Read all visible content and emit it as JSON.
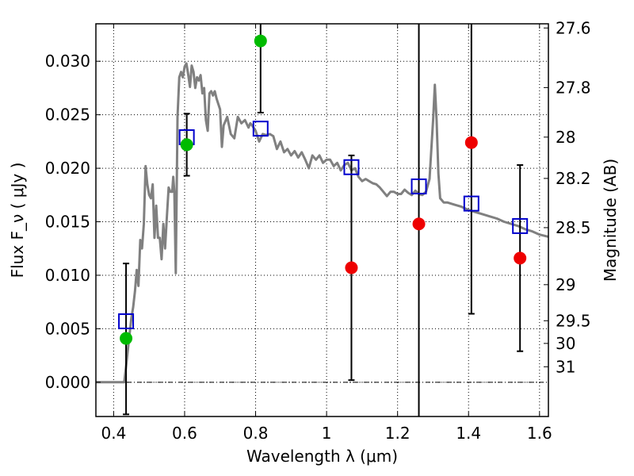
{
  "chart_data": {
    "type": "scatter",
    "xlabel": "Wavelength  λ (μm)",
    "ylabel": "Flux  F_ν  ( μJy )",
    "y2label": "Magnitude (AB)",
    "xlim": [
      0.35,
      1.625
    ],
    "ylim": [
      -0.0032,
      0.0335
    ],
    "grid": true,
    "x_ticks": [
      0.4,
      0.6,
      0.8,
      1.0,
      1.2,
      1.4,
      1.6
    ],
    "x_tick_labels": [
      "0.4",
      "0.6",
      "0.8",
      "1",
      "1.2",
      "1.4",
      "1.6"
    ],
    "y_ticks": [
      0.0,
      0.005,
      0.01,
      0.015,
      0.02,
      0.025,
      0.03
    ],
    "y_tick_labels": [
      "0.000",
      "0.005",
      "0.010",
      "0.015",
      "0.020",
      "0.025",
      "0.030"
    ],
    "y2_ticks": [
      {
        "label": "27.6",
        "flux": 0.03311
      },
      {
        "label": "27.8",
        "flux": 0.02754
      },
      {
        "label": "28",
        "flux": 0.02291
      },
      {
        "label": "28.2",
        "flux": 0.01905
      },
      {
        "label": "28.5",
        "flux": 0.01445
      },
      {
        "label": "29",
        "flux": 0.00912
      },
      {
        "label": "29.5",
        "flux": 0.00575
      },
      {
        "label": "30",
        "flux": 0.00363
      },
      {
        "label": "31",
        "flux": 0.00145
      }
    ],
    "model_spectrum": [
      [
        0.35,
        0.0
      ],
      [
        0.43,
        0.0
      ],
      [
        0.435,
        0.0015
      ],
      [
        0.44,
        0.003
      ],
      [
        0.445,
        0.0045
      ],
      [
        0.45,
        0.006
      ],
      [
        0.455,
        0.007
      ],
      [
        0.46,
        0.0085
      ],
      [
        0.465,
        0.0105
      ],
      [
        0.47,
        0.009
      ],
      [
        0.475,
        0.0133
      ],
      [
        0.48,
        0.0125
      ],
      [
        0.485,
        0.0148
      ],
      [
        0.49,
        0.0202
      ],
      [
        0.495,
        0.0185
      ],
      [
        0.5,
        0.0175
      ],
      [
        0.505,
        0.0172
      ],
      [
        0.51,
        0.0185
      ],
      [
        0.515,
        0.0135
      ],
      [
        0.52,
        0.0165
      ],
      [
        0.525,
        0.0135
      ],
      [
        0.53,
        0.0135
      ],
      [
        0.535,
        0.0115
      ],
      [
        0.54,
        0.0148
      ],
      [
        0.545,
        0.0125
      ],
      [
        0.55,
        0.0155
      ],
      [
        0.555,
        0.0182
      ],
      [
        0.56,
        0.0178
      ],
      [
        0.565,
        0.0178
      ],
      [
        0.568,
        0.0192
      ],
      [
        0.571,
        0.0178
      ],
      [
        0.575,
        0.0102
      ],
      [
        0.58,
        0.0248
      ],
      [
        0.585,
        0.0285
      ],
      [
        0.59,
        0.029
      ],
      [
        0.595,
        0.0285
      ],
      [
        0.6,
        0.0295
      ],
      [
        0.605,
        0.0298
      ],
      [
        0.61,
        0.0288
      ],
      [
        0.615,
        0.0276
      ],
      [
        0.62,
        0.0296
      ],
      [
        0.625,
        0.029
      ],
      [
        0.63,
        0.0275
      ],
      [
        0.635,
        0.0285
      ],
      [
        0.64,
        0.0282
      ],
      [
        0.645,
        0.0287
      ],
      [
        0.65,
        0.027
      ],
      [
        0.655,
        0.0275
      ],
      [
        0.66,
        0.0245
      ],
      [
        0.665,
        0.0235
      ],
      [
        0.67,
        0.027
      ],
      [
        0.675,
        0.0272
      ],
      [
        0.68,
        0.0268
      ],
      [
        0.685,
        0.0272
      ],
      [
        0.69,
        0.0265
      ],
      [
        0.7,
        0.0255
      ],
      [
        0.705,
        0.022
      ],
      [
        0.71,
        0.024
      ],
      [
        0.72,
        0.0248
      ],
      [
        0.73,
        0.0232
      ],
      [
        0.74,
        0.0228
      ],
      [
        0.75,
        0.0248
      ],
      [
        0.76,
        0.0242
      ],
      [
        0.77,
        0.0245
      ],
      [
        0.78,
        0.0238
      ],
      [
        0.785,
        0.0242
      ],
      [
        0.79,
        0.024
      ],
      [
        0.8,
        0.0235
      ],
      [
        0.81,
        0.0225
      ],
      [
        0.82,
        0.0232
      ],
      [
        0.83,
        0.0231
      ],
      [
        0.84,
        0.0232
      ],
      [
        0.85,
        0.023
      ],
      [
        0.86,
        0.0218
      ],
      [
        0.87,
        0.0225
      ],
      [
        0.88,
        0.0215
      ],
      [
        0.89,
        0.0218
      ],
      [
        0.9,
        0.0212
      ],
      [
        0.91,
        0.0216
      ],
      [
        0.92,
        0.021
      ],
      [
        0.93,
        0.0215
      ],
      [
        0.94,
        0.0208
      ],
      [
        0.95,
        0.02
      ],
      [
        0.96,
        0.0212
      ],
      [
        0.97,
        0.0208
      ],
      [
        0.98,
        0.0212
      ],
      [
        0.99,
        0.0205
      ],
      [
        1.0,
        0.0208
      ],
      [
        1.01,
        0.0208
      ],
      [
        1.02,
        0.0202
      ],
      [
        1.03,
        0.0205
      ],
      [
        1.04,
        0.0198
      ],
      [
        1.05,
        0.0203
      ],
      [
        1.06,
        0.0205
      ],
      [
        1.07,
        0.0198
      ],
      [
        1.08,
        0.02
      ],
      [
        1.09,
        0.0192
      ],
      [
        1.1,
        0.0188
      ],
      [
        1.11,
        0.019
      ],
      [
        1.12,
        0.0188
      ],
      [
        1.13,
        0.0186
      ],
      [
        1.14,
        0.0185
      ],
      [
        1.15,
        0.0182
      ],
      [
        1.16,
        0.0178
      ],
      [
        1.17,
        0.0174
      ],
      [
        1.18,
        0.0178
      ],
      [
        1.19,
        0.0178
      ],
      [
        1.2,
        0.0176
      ],
      [
        1.21,
        0.0176
      ],
      [
        1.22,
        0.018
      ],
      [
        1.23,
        0.0177
      ],
      [
        1.24,
        0.0175
      ],
      [
        1.25,
        0.0179
      ],
      [
        1.26,
        0.0176
      ],
      [
        1.27,
        0.0175
      ],
      [
        1.28,
        0.0178
      ],
      [
        1.29,
        0.019
      ],
      [
        1.3,
        0.0245
      ],
      [
        1.305,
        0.0278
      ],
      [
        1.31,
        0.0245
      ],
      [
        1.315,
        0.0195
      ],
      [
        1.32,
        0.0172
      ],
      [
        1.33,
        0.0168
      ],
      [
        1.34,
        0.0168
      ],
      [
        1.36,
        0.0166
      ],
      [
        1.38,
        0.0164
      ],
      [
        1.4,
        0.0161
      ],
      [
        1.42,
        0.0159
      ],
      [
        1.44,
        0.0157
      ],
      [
        1.46,
        0.0155
      ],
      [
        1.48,
        0.0153
      ],
      [
        1.5,
        0.015
      ],
      [
        1.52,
        0.0148
      ],
      [
        1.54,
        0.0146
      ],
      [
        1.56,
        0.0143
      ],
      [
        1.58,
        0.0141
      ],
      [
        1.6,
        0.0138
      ],
      [
        1.625,
        0.0136
      ]
    ],
    "model_photometry": [
      {
        "x": 0.435,
        "y": 0.0057
      },
      {
        "x": 0.606,
        "y": 0.0229
      },
      {
        "x": 0.814,
        "y": 0.0237
      },
      {
        "x": 1.07,
        "y": 0.0201
      },
      {
        "x": 1.26,
        "y": 0.0183
      },
      {
        "x": 1.408,
        "y": 0.0167
      },
      {
        "x": 1.545,
        "y": 0.0146
      }
    ],
    "detections": [
      {
        "x": 0.435,
        "y": 0.0041,
        "err_low": 0.0071,
        "err_high": 0.007
      },
      {
        "x": 0.606,
        "y": 0.0222,
        "err_low": 0.0029,
        "err_high": 0.0029
      },
      {
        "x": 0.814,
        "y": 0.0319,
        "err_low": 0.0067,
        "err_high": 0.0067
      }
    ],
    "non_detections": [
      {
        "x": 1.07,
        "y": 0.0107,
        "err_low": 0.0105,
        "err_high": 0.0105
      },
      {
        "x": 1.26,
        "y": 0.0148,
        "err_low": 0.0215,
        "err_high": 0.0215
      },
      {
        "x": 1.408,
        "y": 0.0224,
        "err_low": 0.016,
        "err_high": 0.016
      },
      {
        "x": 1.545,
        "y": 0.0116,
        "err_low": 0.0087,
        "err_high": 0.0087
      }
    ],
    "colors": {
      "model_line": "#808080",
      "model_box": "#0000cc",
      "detection": "#00bb00",
      "non_detection": "#ee0000",
      "error_bar": "#000000"
    }
  }
}
